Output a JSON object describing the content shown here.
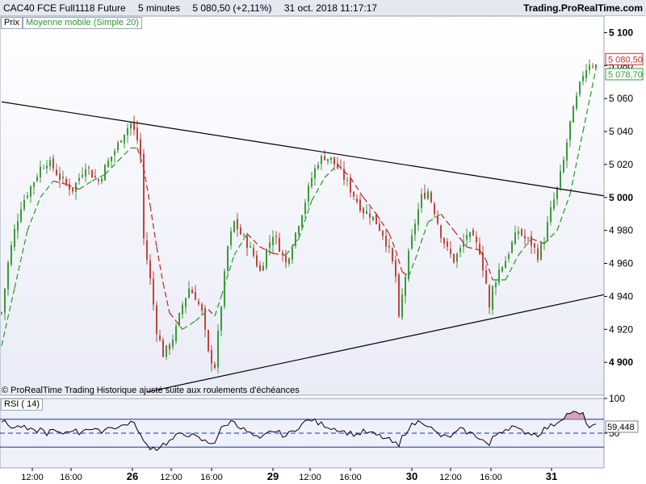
{
  "header": {
    "instrument": "CAC40 FCE Full1118 Future",
    "interval": "5 minutes",
    "last_change": "5 080,50 (+2,11%)",
    "datetime": "31 oct. 2018 11:17:17",
    "brand": "Trading.ProRealTime.com"
  },
  "legend": {
    "price_label": "Prix",
    "ma_label": "Moyenne mobile (Simple 20)"
  },
  "credit": "© ProRealTime Trading  Historique ajusté suite aux roulements d'échéances",
  "rsi_panel": {
    "label": "RSI ( 14)"
  },
  "colors": {
    "up": "#3a9a3a",
    "down": "#c0443e",
    "ma_up": "#2fa02f",
    "ma_down": "#c0302a",
    "panel_bg": "#eef0fa",
    "price_tag": "#c0302a",
    "ma_tag": "#2fa02f",
    "rsi_fill": "#c99aa6"
  },
  "chart_data": [
    {
      "type": "candlestick",
      "title": "CAC40 FCE Full1118 Future",
      "ylim": [
        4880,
        5110
      ],
      "y_ticks": [
        4900,
        4920,
        4940,
        4960,
        4980,
        5000,
        5020,
        5040,
        5060,
        5080,
        5100
      ],
      "y_tick_labels": [
        "4 900",
        "4 920",
        "4 940",
        "4 960",
        "4 980",
        "5 000",
        "5 020",
        "5 040",
        "5 060",
        "5 080",
        "5 100"
      ],
      "x_tick_labels": [
        "12:00",
        "16:00",
        "26",
        "12:00",
        "16:00",
        "29",
        "12:00",
        "16:00",
        "30",
        "12:00",
        "16:00",
        "31"
      ],
      "price_path": [
        [
          0,
          4930
        ],
        [
          2,
          4960
        ],
        [
          4,
          4980
        ],
        [
          6,
          4995
        ],
        [
          8,
          5003
        ],
        [
          10,
          5010
        ],
        [
          12,
          5018
        ],
        [
          14,
          5022
        ],
        [
          16,
          5018
        ],
        [
          18,
          5012
        ],
        [
          20,
          5008
        ],
        [
          22,
          5005
        ],
        [
          24,
          5012
        ],
        [
          26,
          5020
        ],
        [
          28,
          5014
        ],
        [
          30,
          5010
        ],
        [
          32,
          5018
        ],
        [
          34,
          5025
        ],
        [
          36,
          5032
        ],
        [
          38,
          5040
        ],
        [
          40,
          5045
        ],
        [
          42,
          5035
        ],
        [
          43,
          5025
        ],
        [
          44,
          4975
        ],
        [
          46,
          4950
        ],
        [
          48,
          4920
        ],
        [
          50,
          4905
        ],
        [
          52,
          4910
        ],
        [
          54,
          4920
        ],
        [
          56,
          4935
        ],
        [
          58,
          4945
        ],
        [
          60,
          4940
        ],
        [
          62,
          4930
        ],
        [
          64,
          4905
        ],
        [
          66,
          4898
        ],
        [
          68,
          4935
        ],
        [
          70,
          4970
        ],
        [
          72,
          4985
        ],
        [
          74,
          4978
        ],
        [
          76,
          4972
        ],
        [
          78,
          4965
        ],
        [
          80,
          4955
        ],
        [
          82,
          4968
        ],
        [
          84,
          4978
        ],
        [
          86,
          4970
        ],
        [
          88,
          4960
        ],
        [
          90,
          4972
        ],
        [
          92,
          4985
        ],
        [
          94,
          4998
        ],
        [
          96,
          5012
        ],
        [
          98,
          5022
        ],
        [
          100,
          5025
        ],
        [
          102,
          5023
        ],
        [
          104,
          5018
        ],
        [
          106,
          5012
        ],
        [
          108,
          5005
        ],
        [
          110,
          4998
        ],
        [
          112,
          4992
        ],
        [
          114,
          4990
        ],
        [
          116,
          4985
        ],
        [
          118,
          4978
        ],
        [
          120,
          4968
        ],
        [
          122,
          4952
        ],
        [
          123,
          4925
        ],
        [
          124,
          4940
        ],
        [
          126,
          4965
        ],
        [
          128,
          4985
        ],
        [
          130,
          5000
        ],
        [
          132,
          5004
        ],
        [
          134,
          4992
        ],
        [
          136,
          4978
        ],
        [
          138,
          4968
        ],
        [
          140,
          4962
        ],
        [
          142,
          4968
        ],
        [
          144,
          4978
        ],
        [
          146,
          4974
        ],
        [
          148,
          4968
        ],
        [
          150,
          4948
        ],
        [
          151,
          4932
        ],
        [
          152,
          4945
        ],
        [
          154,
          4956
        ],
        [
          156,
          4962
        ],
        [
          158,
          4972
        ],
        [
          160,
          4980
        ],
        [
          162,
          4975
        ],
        [
          164,
          4972
        ],
        [
          166,
          4965
        ],
        [
          168,
          4975
        ],
        [
          170,
          4992
        ],
        [
          172,
          5005
        ],
        [
          174,
          5022
        ],
        [
          176,
          5045
        ],
        [
          178,
          5060
        ],
        [
          180,
          5075
        ],
        [
          182,
          5082
        ],
        [
          184,
          5080
        ]
      ],
      "ma20_path": [
        [
          0,
          4910
        ],
        [
          4,
          4945
        ],
        [
          8,
          4980
        ],
        [
          12,
          5000
        ],
        [
          16,
          5010
        ],
        [
          20,
          5008
        ],
        [
          24,
          5005
        ],
        [
          28,
          5010
        ],
        [
          32,
          5014
        ],
        [
          36,
          5022
        ],
        [
          40,
          5030
        ],
        [
          42,
          5030
        ],
        [
          44,
          5018
        ],
        [
          46,
          4995
        ],
        [
          48,
          4970
        ],
        [
          50,
          4948
        ],
        [
          52,
          4930
        ],
        [
          56,
          4920
        ],
        [
          60,
          4925
        ],
        [
          64,
          4932
        ],
        [
          66,
          4928
        ],
        [
          68,
          4940
        ],
        [
          72,
          4965
        ],
        [
          76,
          4978
        ],
        [
          80,
          4970
        ],
        [
          84,
          4966
        ],
        [
          88,
          4965
        ],
        [
          92,
          4975
        ],
        [
          96,
          4998
        ],
        [
          100,
          5012
        ],
        [
          104,
          5020
        ],
        [
          108,
          5012
        ],
        [
          112,
          5000
        ],
        [
          116,
          4990
        ],
        [
          120,
          4978
        ],
        [
          122,
          4968
        ],
        [
          124,
          4955
        ],
        [
          126,
          4952
        ],
        [
          128,
          4962
        ],
        [
          132,
          4985
        ],
        [
          136,
          4990
        ],
        [
          140,
          4980
        ],
        [
          144,
          4970
        ],
        [
          148,
          4968
        ],
        [
          150,
          4962
        ],
        [
          152,
          4950
        ],
        [
          156,
          4950
        ],
        [
          160,
          4965
        ],
        [
          164,
          4975
        ],
        [
          168,
          4972
        ],
        [
          172,
          4980
        ],
        [
          176,
          5002
        ],
        [
          180,
          5040
        ],
        [
          184,
          5078
        ]
      ],
      "trendlines": [
        {
          "from": [
            0,
            5058
          ],
          "to": [
            184,
            5001
          ]
        },
        {
          "from": [
            45,
            4882
          ],
          "to": [
            184,
            4941
          ]
        }
      ],
      "last_price": 5080.5,
      "last_price_label": "5 080,50",
      "ma_last": 5078.7,
      "ma_last_label": "5 078,70"
    },
    {
      "type": "line",
      "title": "RSI ( 14)",
      "ylim": [
        0,
        100
      ],
      "y_tick_labels": [
        "100",
        "50"
      ],
      "levels": [
        70,
        50,
        30
      ],
      "last_value_label": "59,448",
      "rsi_path": [
        [
          0,
          68
        ],
        [
          2,
          62
        ],
        [
          4,
          58
        ],
        [
          6,
          60
        ],
        [
          8,
          55
        ],
        [
          10,
          52
        ],
        [
          12,
          56
        ],
        [
          14,
          50
        ],
        [
          16,
          54
        ],
        [
          18,
          48
        ],
        [
          20,
          52
        ],
        [
          22,
          56
        ],
        [
          24,
          50
        ],
        [
          26,
          58
        ],
        [
          28,
          55
        ],
        [
          30,
          52
        ],
        [
          32,
          56
        ],
        [
          34,
          60
        ],
        [
          36,
          58
        ],
        [
          38,
          62
        ],
        [
          40,
          66
        ],
        [
          42,
          58
        ],
        [
          44,
          36
        ],
        [
          46,
          30
        ],
        [
          48,
          28
        ],
        [
          50,
          34
        ],
        [
          52,
          38
        ],
        [
          54,
          45
        ],
        [
          56,
          50
        ],
        [
          58,
          48
        ],
        [
          60,
          44
        ],
        [
          62,
          40
        ],
        [
          64,
          36
        ],
        [
          66,
          38
        ],
        [
          68,
          56
        ],
        [
          70,
          64
        ],
        [
          72,
          68
        ],
        [
          74,
          58
        ],
        [
          76,
          52
        ],
        [
          78,
          46
        ],
        [
          80,
          40
        ],
        [
          82,
          48
        ],
        [
          84,
          54
        ],
        [
          86,
          50
        ],
        [
          88,
          46
        ],
        [
          90,
          52
        ],
        [
          92,
          60
        ],
        [
          94,
          66
        ],
        [
          96,
          70
        ],
        [
          98,
          64
        ],
        [
          100,
          62
        ],
        [
          102,
          58
        ],
        [
          104,
          56
        ],
        [
          106,
          52
        ],
        [
          108,
          50
        ],
        [
          110,
          48
        ],
        [
          112,
          52
        ],
        [
          114,
          50
        ],
        [
          116,
          47
        ],
        [
          118,
          44
        ],
        [
          120,
          40
        ],
        [
          122,
          34
        ],
        [
          123,
          30
        ],
        [
          124,
          44
        ],
        [
          126,
          58
        ],
        [
          128,
          64
        ],
        [
          130,
          68
        ],
        [
          132,
          62
        ],
        [
          134,
          52
        ],
        [
          136,
          46
        ],
        [
          138,
          44
        ],
        [
          140,
          48
        ],
        [
          142,
          55
        ],
        [
          144,
          52
        ],
        [
          146,
          48
        ],
        [
          148,
          44
        ],
        [
          150,
          36
        ],
        [
          151,
          32
        ],
        [
          152,
          42
        ],
        [
          154,
          52
        ],
        [
          156,
          56
        ],
        [
          158,
          60
        ],
        [
          160,
          54
        ],
        [
          162,
          52
        ],
        [
          164,
          50
        ],
        [
          166,
          48
        ],
        [
          168,
          56
        ],
        [
          170,
          60
        ],
        [
          172,
          66
        ],
        [
          174,
          74
        ],
        [
          176,
          80
        ],
        [
          178,
          78
        ],
        [
          180,
          76
        ],
        [
          182,
          58
        ],
        [
          184,
          59.4
        ]
      ]
    }
  ]
}
